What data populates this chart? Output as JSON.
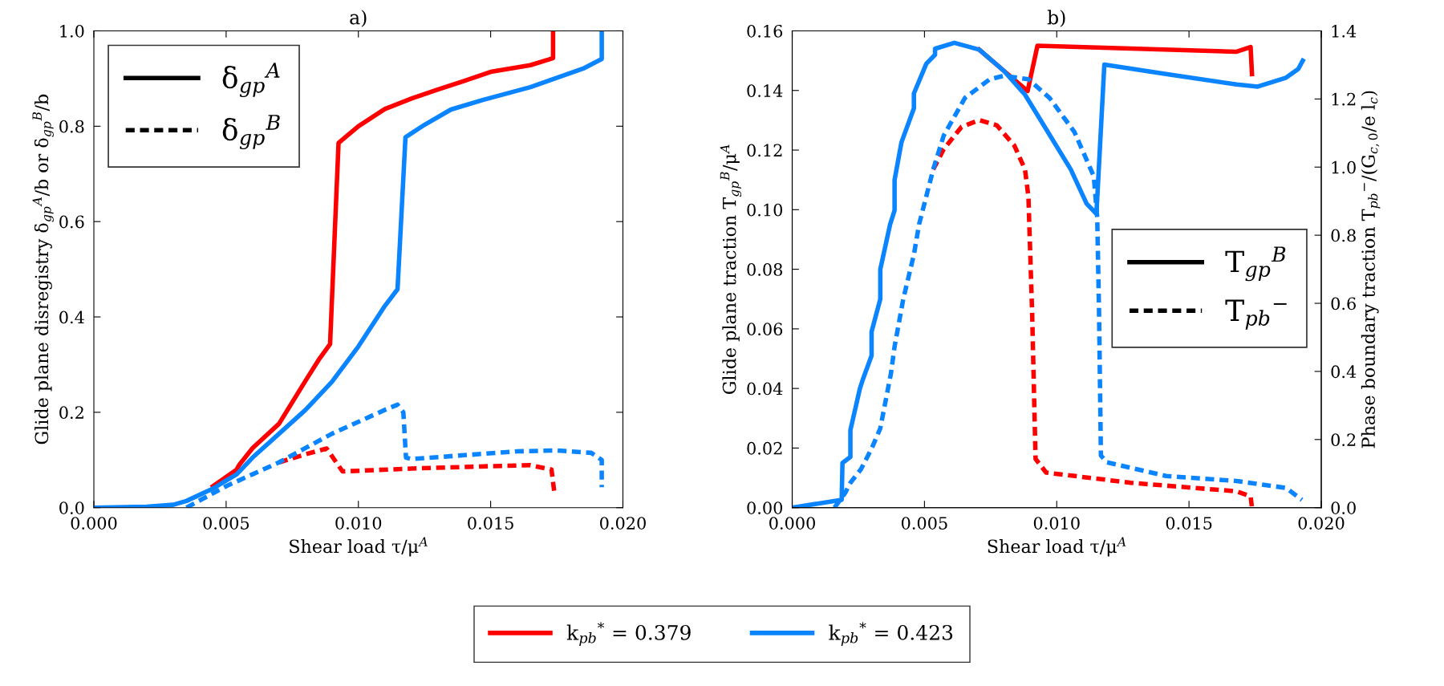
{
  "chart_data": [
    {
      "type": "line",
      "title": "a)",
      "xlabel": "Shear load τ/μ$^{A}$",
      "ylabel": "Glide plane disregistry δ$_{gp}$$^{A}$/b or δ$_{gp}$$^{B}$/b",
      "xlim": [
        0,
        0.02
      ],
      "xticks": [
        {
          "value": 0,
          "label": "0.000"
        },
        {
          "value": 0.005,
          "label": "0.005"
        },
        {
          "value": 0.01,
          "label": "0.010"
        },
        {
          "value": 0.015,
          "label": "0.015"
        },
        {
          "value": 0.02,
          "label": "0.020"
        }
      ],
      "ylim": [
        0,
        1
      ],
      "yticks": [
        {
          "value": 0,
          "label": "0.0"
        },
        {
          "value": 0.2,
          "label": "0.2"
        },
        {
          "value": 0.4,
          "label": "0.4"
        },
        {
          "value": 0.6,
          "label": "0.6"
        },
        {
          "value": 0.8,
          "label": "0.8"
        },
        {
          "value": 1,
          "label": "1.0"
        }
      ],
      "grid": false,
      "legend": "bottom",
      "annotations": [
        "δ$_{gp}$$^{A}$",
        "δ$_{gp}$$^{B}$"
      ],
      "series": [
        {
          "name": "k$_{pb}$$^{*}$ = 0.379",
          "color": "#ff0000",
          "line_style": "solid",
          "x": [
            0.0045,
            0.0054,
            0.0055,
            0.006,
            0.007,
            0.008,
            0.0085,
            0.00893,
            0.00925,
            0.01,
            0.011,
            0.012,
            0.013,
            0.014,
            0.015,
            0.0165,
            0.0172,
            0.01736,
            0.01736
          ],
          "values": [
            0.045,
            0.08,
            0.09,
            0.125,
            0.176,
            0.266,
            0.31,
            0.343,
            0.765,
            0.8,
            0.836,
            0.858,
            0.877,
            0.895,
            0.914,
            0.928,
            0.94,
            0.943,
            1.0
          ]
        },
        {
          "color": "#ff0000",
          "line_style": "dashed",
          "x": [
            0.007,
            0.008,
            0.0088,
            0.0094,
            0.012,
            0.015,
            0.0165,
            0.0173,
            0.0174
          ],
          "values": [
            0.095,
            0.112,
            0.124,
            0.076,
            0.082,
            0.087,
            0.089,
            0.08,
            0.035
          ]
        },
        {
          "name": "k$_{pb}$$^{*}$ = 0.423",
          "color": "#0a84ff",
          "line_style": "solid",
          "x": [
            0,
            0.002,
            0.003,
            0.0035,
            0.0045,
            0.0054,
            0.006,
            0.007,
            0.008,
            0.009,
            0.01,
            0.011,
            0.01148,
            0.01178,
            0.0125,
            0.0135,
            0.0147,
            0.0165,
            0.0185,
            0.0192,
            0.0192
          ],
          "values": [
            0,
            0.002,
            0.006,
            0.014,
            0.04,
            0.07,
            0.105,
            0.155,
            0.205,
            0.264,
            0.338,
            0.423,
            0.458,
            0.777,
            0.803,
            0.835,
            0.855,
            0.882,
            0.921,
            0.941,
            1.0
          ]
        },
        {
          "color": "#0a84ff",
          "line_style": "dashed",
          "x": [
            0.0035,
            0.004,
            0.0045,
            0.005,
            0.006,
            0.007,
            0.008,
            0.009,
            0.01,
            0.011,
            0.01148,
            0.0117,
            0.0118,
            0.012,
            0.014,
            0.016,
            0.0175,
            0.0188,
            0.0192,
            0.0192
          ],
          "values": [
            0,
            0.015,
            0.03,
            0.045,
            0.07,
            0.095,
            0.125,
            0.155,
            0.18,
            0.205,
            0.216,
            0.2,
            0.105,
            0.102,
            0.11,
            0.118,
            0.12,
            0.115,
            0.1,
            0.043
          ]
        }
      ]
    },
    {
      "type": "line",
      "title": "b)",
      "xlabel": "Shear load τ/μ$^{A}$",
      "ylabel": "Glide plane traction T$_{gp}$$^{B}$/μ$^{A}$",
      "y2label": "Phase boundary traction T$_{pb}$$^{−}$/(G$_{c,0}$/e l$_{c}$)",
      "xlim": [
        0,
        0.02
      ],
      "xticks": [
        {
          "value": 0,
          "label": "0.000"
        },
        {
          "value": 0.005,
          "label": "0.005"
        },
        {
          "value": 0.01,
          "label": "0.010"
        },
        {
          "value": 0.015,
          "label": "0.015"
        },
        {
          "value": 0.02,
          "label": "0.020"
        }
      ],
      "ylim": [
        0,
        0.16
      ],
      "yticks": [
        {
          "value": 0,
          "label": "0.00"
        },
        {
          "value": 0.02,
          "label": "0.02"
        },
        {
          "value": 0.04,
          "label": "0.04"
        },
        {
          "value": 0.06,
          "label": "0.06"
        },
        {
          "value": 0.08,
          "label": "0.08"
        },
        {
          "value": 0.1,
          "label": "0.10"
        },
        {
          "value": 0.12,
          "label": "0.12"
        },
        {
          "value": 0.14,
          "label": "0.14"
        },
        {
          "value": 0.16,
          "label": "0.16"
        }
      ],
      "y2lim": [
        0,
        1.4
      ],
      "y2ticks": [
        {
          "value": 0,
          "label": "0.0"
        },
        {
          "value": 0.2,
          "label": "0.2"
        },
        {
          "value": 0.4,
          "label": "0.4"
        },
        {
          "value": 0.6,
          "label": "0.6"
        },
        {
          "value": 0.8,
          "label": "0.8"
        },
        {
          "value": 1,
          "label": "1.0"
        },
        {
          "value": 1.2,
          "label": "1.2"
        },
        {
          "value": 1.4,
          "label": "1.4"
        }
      ],
      "grid": false,
      "annotations": [
        "T$_{gp}$$^{B}$",
        "T$_{pb}$$^{−}$"
      ],
      "series": [
        {
          "color": "#ff0000",
          "line_style": "solid",
          "x": [
            0.00707,
            0.008,
            0.0089,
            0.00927,
            0.0168,
            0.01733,
            0.01738
          ],
          "values": [
            0.1537,
            0.1466,
            0.1398,
            0.155,
            0.153,
            0.1546,
            0.1455
          ]
        },
        {
          "color": "#ff0000",
          "line_style": "dashed",
          "axis": "y2",
          "x": [
            0.00533,
            0.00573,
            0.0064,
            0.00707,
            0.00773,
            0.0084,
            0.0088,
            0.00893,
            0.00907,
            0.0092,
            0.0096,
            0.0128,
            0.0168,
            0.01733,
            0.01738
          ],
          "values": [
            0.993,
            1.053,
            1.118,
            1.138,
            1.123,
            1.063,
            0.993,
            0.913,
            0.573,
            0.143,
            0.103,
            0.073,
            0.048,
            0.033,
            0
          ]
        },
        {
          "color": "#0a84ff",
          "line_style": "solid",
          "x": [
            0,
            0.00187,
            0.0019,
            0.0022,
            0.0022,
            0.00256,
            0.00267,
            0.003,
            0.003,
            0.00333,
            0.00333,
            0.0037,
            0.00387,
            0.00387,
            0.00413,
            0.0046,
            0.0046,
            0.00507,
            0.0054,
            0.0054,
            0.00613,
            0.00707,
            0.008,
            0.0088,
            0.0096,
            0.01053,
            0.01113,
            0.0115,
            0.0118,
            0.01413,
            0.0168,
            0.0176,
            0.01867,
            0.01913,
            0.0193
          ],
          "values": [
            0,
            0.0026,
            0.015,
            0.017,
            0.026,
            0.04,
            0.043,
            0.051,
            0.059,
            0.07,
            0.08,
            0.095,
            0.0998,
            0.11,
            0.1226,
            0.134,
            0.139,
            0.149,
            0.152,
            0.154,
            0.156,
            0.1537,
            0.1466,
            0.1386,
            0.127,
            0.1135,
            0.102,
            0.0986,
            0.1487,
            0.1455,
            0.142,
            0.1413,
            0.1443,
            0.1472,
            0.15
          ]
        },
        {
          "color": "#0a84ff",
          "line_style": "dashed",
          "axis": "y2",
          "x": [
            0.0016,
            0.002,
            0.0022,
            0.0026,
            0.003,
            0.00333,
            0.00373,
            0.00387,
            0.0042,
            0.0046,
            0.0048,
            0.00533,
            0.00573,
            0.00653,
            0.00747,
            0.008,
            0.00893,
            0.00973,
            0.01067,
            0.0114,
            0.01153,
            0.0116,
            0.01167,
            0.0119,
            0.01413,
            0.0168,
            0.01867,
            0.01927
          ],
          "values": [
            0,
            0.043,
            0.073,
            0.113,
            0.173,
            0.233,
            0.393,
            0.473,
            0.613,
            0.743,
            0.833,
            0.993,
            1.093,
            1.203,
            1.258,
            1.268,
            1.258,
            1.203,
            1.103,
            0.973,
            0.853,
            0.573,
            0.153,
            0.133,
            0.093,
            0.078,
            0.058,
            0.023
          ]
        }
      ]
    }
  ]
}
